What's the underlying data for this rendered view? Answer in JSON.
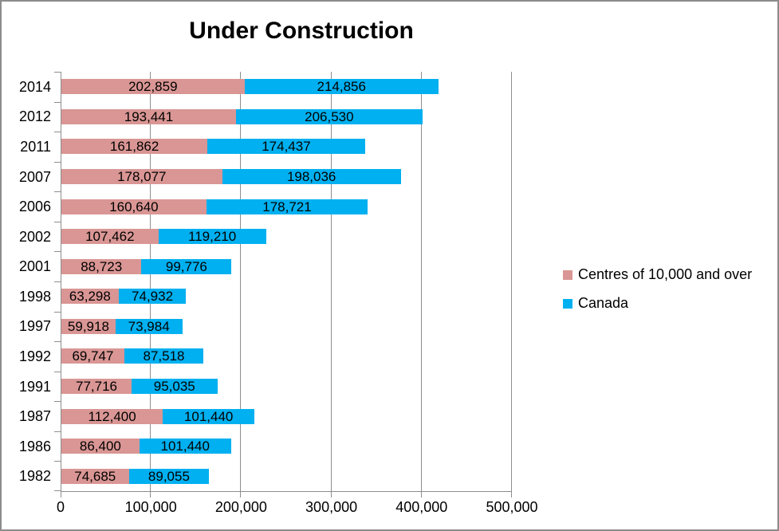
{
  "title": "Under Construction",
  "chart_data": {
    "type": "bar",
    "orientation": "horizontal",
    "stacked": true,
    "title": "Under Construction",
    "categories": [
      "2014",
      "2012",
      "2011",
      "2007",
      "2006",
      "2002",
      "2001",
      "1998",
      "1997",
      "1992",
      "1991",
      "1987",
      "1986",
      "1982"
    ],
    "series": [
      {
        "name": "Centres of 10,000 and over",
        "color": "#D99694",
        "values": [
          202859,
          193441,
          161862,
          178077,
          160640,
          107462,
          88723,
          63298,
          59918,
          69747,
          77716,
          112400,
          86400,
          74685
        ],
        "labels": [
          "202,859",
          "193,441",
          "161,862",
          "178,077",
          "160,640",
          "107,462",
          "88,723",
          "63,298",
          "59,918",
          "69,747",
          "77,716",
          "112,400",
          "86,400",
          "74,685"
        ]
      },
      {
        "name": "Canada",
        "color": "#00B0F0",
        "values": [
          214856,
          206530,
          174437,
          198036,
          178721,
          119210,
          99776,
          74932,
          73984,
          87518,
          95035,
          101440,
          101440,
          89055
        ],
        "labels": [
          "214,856",
          "206,530",
          "174,437",
          "198,036",
          "178,721",
          "119,210",
          "99,776",
          "74,932",
          "73,984",
          "87,518",
          "95,035",
          "101,440",
          "101,440",
          "89,055"
        ]
      }
    ],
    "xlim": [
      0,
      500000
    ],
    "x_tick_labels": [
      "0",
      "100,000",
      "200,000",
      "300,000",
      "400,000",
      "500,000"
    ],
    "grid": true,
    "legend_position": "right",
    "axis_color": "#8E8E8E",
    "text_color": "#000000",
    "frame_border_color": "#8C8C8C"
  },
  "legend": {
    "items": [
      {
        "label": "Centres of 10,000 and over",
        "color": "#D99694"
      },
      {
        "label": "Canada",
        "color": "#00B0F0"
      }
    ]
  }
}
